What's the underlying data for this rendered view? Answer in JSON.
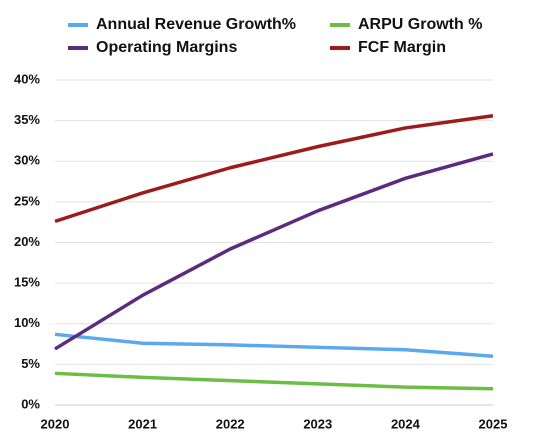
{
  "chart_data": {
    "type": "line",
    "categories": [
      "2020",
      "2021",
      "2022",
      "2023",
      "2024",
      "2025"
    ],
    "series": [
      {
        "name": "Annual Revenue Growth%",
        "color": "#5aa9f0",
        "values": [
          8.7,
          7.6,
          7.4,
          7.1,
          6.8,
          6.0
        ]
      },
      {
        "name": "ARPU Growth %",
        "color": "#6cbd45",
        "values": [
          3.9,
          3.4,
          3.0,
          2.6,
          2.2,
          2.0
        ]
      },
      {
        "name": "Operating Margins",
        "color": "#5c2a7e",
        "values": [
          6.9,
          13.5,
          19.2,
          23.9,
          27.9,
          30.9
        ]
      },
      {
        "name": "FCF Margin",
        "color": "#9e1b1b",
        "values": [
          22.6,
          26.1,
          29.2,
          31.8,
          34.1,
          35.6
        ]
      }
    ],
    "ylim": [
      0,
      40
    ],
    "yticks": [
      {
        "value": 0,
        "label": "0%"
      },
      {
        "value": 5,
        "label": "5%"
      },
      {
        "value": 10,
        "label": "10%"
      },
      {
        "value": 15,
        "label": "15%"
      },
      {
        "value": 20,
        "label": "20%"
      },
      {
        "value": 25,
        "label": "25%"
      },
      {
        "value": 30,
        "label": "30%"
      },
      {
        "value": 35,
        "label": "35%"
      },
      {
        "value": 40,
        "label": "40%"
      }
    ],
    "grid": true
  }
}
